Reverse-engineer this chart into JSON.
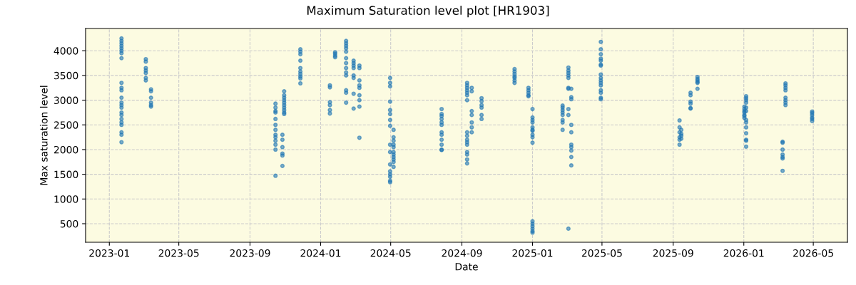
{
  "chart_data": {
    "type": "scatter",
    "title": "Maximum Saturation level plot [HR1903]",
    "xlabel": "Date",
    "ylabel": "Max saturation level",
    "xlim": [
      "2022-11-21",
      "2026-06-29"
    ],
    "xticks": [
      "2023-01",
      "2023-05",
      "2023-09",
      "2024-01",
      "2024-05",
      "2024-09",
      "2025-01",
      "2025-05",
      "2025-09",
      "2026-01",
      "2026-05"
    ],
    "ylim": [
      125,
      4450
    ],
    "yticks": [
      500,
      1000,
      1500,
      2000,
      2500,
      3000,
      3500,
      4000
    ],
    "grid": true,
    "marker": "circle",
    "series": [
      {
        "color": "#1f77b4",
        "x": [
          "2023-01-22",
          "2023-01-22",
          "2023-01-22",
          "2023-01-22",
          "2023-01-22",
          "2023-01-22",
          "2023-01-22",
          "2023-01-22",
          "2023-01-22",
          "2023-01-22",
          "2023-01-22",
          "2023-01-22",
          "2023-01-22",
          "2023-01-22",
          "2023-01-22",
          "2023-01-22",
          "2023-01-22",
          "2023-01-22",
          "2023-01-22",
          "2023-01-22",
          "2023-01-22",
          "2023-01-22",
          "2023-01-22",
          "2023-03-05",
          "2023-03-05",
          "2023-03-05",
          "2023-03-05",
          "2023-03-05",
          "2023-03-05",
          "2023-03-05",
          "2023-03-14",
          "2023-03-14",
          "2023-03-14",
          "2023-03-14",
          "2023-03-14",
          "2023-03-14",
          "2023-10-15",
          "2023-10-15",
          "2023-10-15",
          "2023-10-15",
          "2023-10-15",
          "2023-10-15",
          "2023-10-15",
          "2023-10-15",
          "2023-10-15",
          "2023-10-15",
          "2023-10-15",
          "2023-10-15",
          "2023-10-15",
          "2023-10-30",
          "2023-10-30",
          "2023-10-30",
          "2023-10-30",
          "2023-10-30",
          "2023-10-30",
          "2023-10-30",
          "2023-10-30",
          "2023-10-30",
          "2023-10-30",
          "2023-10-27",
          "2023-10-27",
          "2023-10-27",
          "2023-10-27",
          "2023-10-27",
          "2023-10-27",
          "2023-11-27",
          "2023-11-27",
          "2023-11-27",
          "2023-11-27",
          "2023-11-27",
          "2023-11-27",
          "2023-11-27",
          "2023-11-27",
          "2023-11-27",
          "2023-11-27",
          "2024-01-17",
          "2024-01-17",
          "2024-01-17",
          "2024-01-17",
          "2024-01-17",
          "2024-01-17",
          "2024-01-26",
          "2024-01-26",
          "2024-01-26",
          "2024-01-26",
          "2024-02-14",
          "2024-02-14",
          "2024-02-14",
          "2024-02-14",
          "2024-02-14",
          "2024-02-14",
          "2024-02-14",
          "2024-02-14",
          "2024-02-14",
          "2024-02-14",
          "2024-02-14",
          "2024-02-14",
          "2024-02-14",
          "2024-02-27",
          "2024-02-27",
          "2024-02-27",
          "2024-02-27",
          "2024-02-27",
          "2024-02-27",
          "2024-02-27",
          "2024-02-27",
          "2024-03-08",
          "2024-03-08",
          "2024-03-08",
          "2024-03-08",
          "2024-03-08",
          "2024-03-08",
          "2024-03-08",
          "2024-03-08",
          "2024-03-08",
          "2024-04-30",
          "2024-04-30",
          "2024-04-30",
          "2024-04-30",
          "2024-04-30",
          "2024-04-30",
          "2024-04-30",
          "2024-04-30",
          "2024-04-30",
          "2024-04-30",
          "2024-04-30",
          "2024-04-30",
          "2024-04-30",
          "2024-04-30",
          "2024-04-30",
          "2024-04-30",
          "2024-05-06",
          "2024-05-06",
          "2024-05-06",
          "2024-05-06",
          "2024-05-06",
          "2024-05-06",
          "2024-05-06",
          "2024-05-06",
          "2024-05-06",
          "2024-05-06",
          "2024-05-06",
          "2024-07-28",
          "2024-07-28",
          "2024-07-28",
          "2024-07-28",
          "2024-07-28",
          "2024-07-28",
          "2024-07-28",
          "2024-07-28",
          "2024-07-28",
          "2024-07-28",
          "2024-07-28",
          "2024-07-28",
          "2024-09-10",
          "2024-09-10",
          "2024-09-10",
          "2024-09-10",
          "2024-09-10",
          "2024-09-10",
          "2024-09-10",
          "2024-09-10",
          "2024-09-10",
          "2024-09-10",
          "2024-09-10",
          "2024-09-10",
          "2024-09-10",
          "2024-09-10",
          "2024-09-10",
          "2024-09-10",
          "2024-09-18",
          "2024-09-18",
          "2024-09-18",
          "2024-09-18",
          "2024-09-18",
          "2024-09-18",
          "2024-09-18",
          "2024-10-05",
          "2024-10-05",
          "2024-10-05",
          "2024-10-05",
          "2024-10-05",
          "2024-10-05",
          "2024-12-01",
          "2024-12-01",
          "2024-12-01",
          "2024-12-01",
          "2024-12-01",
          "2024-12-01",
          "2024-12-01",
          "2024-12-25",
          "2024-12-25",
          "2024-12-25",
          "2024-12-25",
          "2024-12-25",
          "2025-01-01",
          "2025-01-01",
          "2025-01-01",
          "2025-01-01",
          "2025-01-01",
          "2025-01-01",
          "2025-01-01",
          "2025-01-01",
          "2025-01-01",
          "2025-01-01",
          "2025-01-01",
          "2025-01-01",
          "2025-01-01",
          "2025-01-01",
          "2025-01-01",
          "2025-01-01",
          "2025-02-22",
          "2025-02-22",
          "2025-02-22",
          "2025-02-22",
          "2025-02-22",
          "2025-02-22",
          "2025-02-22",
          "2025-02-22",
          "2025-03-04",
          "2025-03-04",
          "2025-03-04",
          "2025-03-04",
          "2025-03-04",
          "2025-03-04",
          "2025-03-04",
          "2025-03-04",
          "2025-03-04",
          "2025-03-04",
          "2025-03-09",
          "2025-03-09",
          "2025-03-09",
          "2025-03-09",
          "2025-03-09",
          "2025-03-09",
          "2025-03-09",
          "2025-03-09",
          "2025-03-09",
          "2025-03-09",
          "2025-04-29",
          "2025-04-29",
          "2025-04-29",
          "2025-04-29",
          "2025-04-29",
          "2025-04-29",
          "2025-04-29",
          "2025-04-29",
          "2025-04-29",
          "2025-04-29",
          "2025-04-29",
          "2025-04-29",
          "2025-04-29",
          "2025-04-29",
          "2025-04-29",
          "2025-04-29",
          "2025-09-12",
          "2025-09-12",
          "2025-09-12",
          "2025-09-12",
          "2025-09-12",
          "2025-09-12",
          "2025-09-15",
          "2025-09-15",
          "2025-09-15",
          "2025-09-15",
          "2025-10-01",
          "2025-10-01",
          "2025-10-01",
          "2025-10-01",
          "2025-10-01",
          "2025-10-01",
          "2025-10-13",
          "2025-10-13",
          "2025-10-13",
          "2025-10-13",
          "2025-10-13",
          "2025-10-13",
          "2026-01-02",
          "2026-01-02",
          "2026-01-02",
          "2026-01-02",
          "2026-01-02",
          "2026-01-02",
          "2026-01-02",
          "2026-01-05",
          "2026-01-05",
          "2026-01-05",
          "2026-01-05",
          "2026-01-05",
          "2026-01-05",
          "2026-01-05",
          "2026-01-05",
          "2026-01-05",
          "2026-01-05",
          "2026-01-05",
          "2026-01-05",
          "2026-01-05",
          "2026-03-09",
          "2026-03-09",
          "2026-03-09",
          "2026-03-09",
          "2026-03-09",
          "2026-03-09",
          "2026-03-09",
          "2026-03-14",
          "2026-03-14",
          "2026-03-14",
          "2026-03-14",
          "2026-03-14",
          "2026-03-14",
          "2026-03-14",
          "2026-03-14",
          "2026-04-29",
          "2026-04-29",
          "2026-04-29",
          "2026-04-29",
          "2026-04-29",
          "2026-04-29"
        ],
        "values": [
          4250,
          4200,
          4150,
          4100,
          4050,
          4000,
          3950,
          3850,
          3350,
          3250,
          3200,
          3050,
          2950,
          2900,
          2850,
          2750,
          2700,
          2620,
          2550,
          2500,
          2350,
          2300,
          2150,
          3830,
          3780,
          3650,
          3600,
          3550,
          3450,
          3400,
          3220,
          3180,
          3050,
          2950,
          2900,
          2870,
          2930,
          2850,
          2780,
          2750,
          2620,
          2500,
          2400,
          2300,
          2250,
          2180,
          2100,
          2000,
          1470,
          3180,
          3100,
          3050,
          3000,
          2950,
          2900,
          2850,
          2800,
          2750,
          2720,
          2300,
          2200,
          2050,
          1920,
          1880,
          1670,
          4030,
          3980,
          3930,
          3800,
          3650,
          3580,
          3530,
          3480,
          3440,
          3340,
          3300,
          3260,
          2960,
          2900,
          2800,
          2730,
          3970,
          3940,
          3900,
          3870,
          4200,
          4150,
          4100,
          4050,
          3980,
          3850,
          3750,
          3650,
          3560,
          3500,
          3200,
          3150,
          2950,
          3800,
          3750,
          3700,
          3650,
          3500,
          3450,
          3130,
          2830,
          3700,
          3650,
          3400,
          3300,
          3250,
          3100,
          3000,
          2870,
          2240,
          3450,
          3350,
          3280,
          2970,
          2800,
          2720,
          2600,
          2480,
          2100,
          1950,
          1700,
          1560,
          1500,
          1450,
          1370,
          1340,
          2400,
          2250,
          2180,
          2100,
          2050,
          1950,
          1900,
          1850,
          1800,
          1750,
          1650,
          2820,
          2720,
          2680,
          2620,
          2550,
          2500,
          2350,
          2300,
          2200,
          2100,
          2000,
          1990,
          3350,
          3300,
          3250,
          3200,
          3150,
          3100,
          3000,
          2350,
          2280,
          2200,
          2150,
          2100,
          1950,
          1900,
          1800,
          1720,
          3250,
          3180,
          2780,
          2700,
          2550,
          2450,
          2350,
          3040,
          2980,
          2900,
          2850,
          2700,
          2620,
          3630,
          3580,
          3530,
          3480,
          3450,
          3400,
          3350,
          3250,
          3200,
          3150,
          3100,
          3080,
          2820,
          2650,
          2600,
          2550,
          2450,
          2400,
          2380,
          2300,
          2250,
          2140,
          550,
          500,
          450,
          400,
          350,
          320,
          2890,
          2850,
          2800,
          2750,
          2700,
          2600,
          2550,
          2400,
          3660,
          3600,
          3550,
          3500,
          3450,
          3250,
          3230,
          2820,
          2700,
          400,
          3230,
          3060,
          3020,
          2500,
          2350,
          2100,
          2050,
          1980,
          1850,
          1680,
          4180,
          4030,
          3930,
          3840,
          3800,
          3720,
          3700,
          3520,
          3450,
          3400,
          3350,
          3300,
          3200,
          3150,
          3050,
          3020,
          2590,
          2450,
          2350,
          2250,
          2200,
          2100,
          2400,
          2320,
          2280,
          2220,
          3150,
          3100,
          2970,
          2930,
          2840,
          2830,
          3470,
          3430,
          3400,
          3370,
          3350,
          3230,
          2870,
          2820,
          2780,
          2750,
          2700,
          2680,
          2640,
          3080,
          3040,
          3000,
          2950,
          2850,
          2780,
          2600,
          2550,
          2450,
          2330,
          2200,
          2180,
          2060,
          2160,
          2140,
          2000,
          1900,
          1850,
          1820,
          1570,
          3340,
          3300,
          3250,
          3200,
          3050,
          3000,
          2950,
          2900,
          2770,
          2740,
          2700,
          2650,
          2620,
          2580
        ]
      }
    ]
  }
}
